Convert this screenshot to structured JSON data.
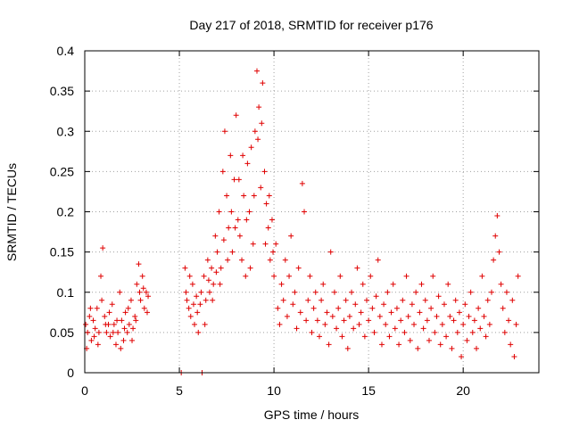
{
  "chart_data": {
    "type": "scatter",
    "title": "Day 217 of 2018, SRMTID for receiver p176",
    "xlabel": "GPS time / hours",
    "ylabel": "SRMTID / TECUs",
    "xlim": [
      0,
      24
    ],
    "ylim": [
      0,
      0.4
    ],
    "x_ticks": [
      0,
      5,
      10,
      15,
      20
    ],
    "x_tick_labels": [
      "0",
      "5",
      "10",
      "15",
      "20"
    ],
    "y_ticks": [
      0,
      0.05,
      0.1,
      0.15,
      0.2,
      0.25,
      0.3,
      0.35,
      0.4
    ],
    "y_tick_labels": [
      "0",
      "0.05",
      "0.1",
      "0.15",
      "0.2",
      "0.25",
      "0.3",
      "0.35",
      "0.4"
    ],
    "grid": true,
    "marker": "plus",
    "marker_color": "#e00000",
    "series": [
      {
        "name": "SRMTID",
        "points": [
          [
            0.05,
            0.06
          ],
          [
            0.15,
            0.05
          ],
          [
            0.25,
            0.07
          ],
          [
            0.35,
            0.04
          ],
          [
            0.45,
            0.065
          ],
          [
            0.55,
            0.055
          ],
          [
            0.65,
            0.08
          ],
          [
            0.75,
            0.05
          ],
          [
            0.85,
            0.12
          ],
          [
            0.95,
            0.155
          ],
          [
            1.05,
            0.07
          ],
          [
            1.15,
            0.05
          ],
          [
            1.25,
            0.06
          ],
          [
            1.35,
            0.045
          ],
          [
            1.45,
            0.085
          ],
          [
            1.55,
            0.06
          ],
          [
            1.65,
            0.035
          ],
          [
            1.75,
            0.05
          ],
          [
            1.85,
            0.1
          ],
          [
            1.95,
            0.065
          ],
          [
            2.05,
            0.04
          ],
          [
            2.15,
            0.075
          ],
          [
            2.25,
            0.05
          ],
          [
            2.35,
            0.06
          ],
          [
            2.45,
            0.09
          ],
          [
            2.55,
            0.055
          ],
          [
            2.65,
            0.07
          ],
          [
            2.75,
            0.11
          ],
          [
            2.85,
            0.135
          ],
          [
            2.95,
            0.09
          ],
          [
            3.05,
            0.12
          ],
          [
            3.15,
            0.08
          ],
          [
            3.25,
            0.1
          ],
          [
            3.35,
            0.095
          ],
          [
            0.1,
            0.03
          ],
          [
            0.3,
            0.08
          ],
          [
            0.5,
            0.045
          ],
          [
            0.7,
            0.035
          ],
          [
            0.9,
            0.09
          ],
          [
            1.1,
            0.06
          ],
          [
            1.3,
            0.075
          ],
          [
            1.5,
            0.05
          ],
          [
            1.7,
            0.065
          ],
          [
            1.9,
            0.03
          ],
          [
            2.1,
            0.055
          ],
          [
            2.3,
            0.08
          ],
          [
            2.5,
            0.04
          ],
          [
            2.7,
            0.065
          ],
          [
            2.9,
            0.1
          ],
          [
            3.1,
            0.105
          ],
          [
            3.3,
            0.075
          ],
          [
            5.1,
            0.0
          ],
          [
            5.3,
            0.13
          ],
          [
            5.4,
            0.09
          ],
          [
            5.5,
            0.08
          ],
          [
            5.6,
            0.07
          ],
          [
            5.7,
            0.11
          ],
          [
            5.8,
            0.06
          ],
          [
            5.9,
            0.095
          ],
          [
            6.0,
            0.05
          ],
          [
            6.1,
            0.085
          ],
          [
            6.2,
            0.0
          ],
          [
            6.3,
            0.12
          ],
          [
            6.4,
            0.09
          ],
          [
            6.5,
            0.14
          ],
          [
            6.6,
            0.1
          ],
          [
            6.7,
            0.13
          ],
          [
            6.8,
            0.11
          ],
          [
            6.9,
            0.17
          ],
          [
            7.0,
            0.15
          ],
          [
            7.1,
            0.2
          ],
          [
            7.2,
            0.13
          ],
          [
            7.3,
            0.25
          ],
          [
            7.4,
            0.3
          ],
          [
            7.5,
            0.22
          ],
          [
            7.6,
            0.18
          ],
          [
            7.7,
            0.27
          ],
          [
            7.8,
            0.15
          ],
          [
            7.9,
            0.24
          ],
          [
            8.0,
            0.32
          ],
          [
            8.1,
            0.19
          ],
          [
            8.2,
            0.17
          ],
          [
            8.3,
            0.14
          ],
          [
            8.4,
            0.22
          ],
          [
            8.5,
            0.12
          ],
          [
            8.6,
            0.26
          ],
          [
            8.7,
            0.2
          ],
          [
            8.8,
            0.28
          ],
          [
            8.9,
            0.16
          ],
          [
            9.0,
            0.3
          ],
          [
            9.1,
            0.375
          ],
          [
            9.2,
            0.33
          ],
          [
            9.3,
            0.23
          ],
          [
            9.4,
            0.36
          ],
          [
            9.5,
            0.25
          ],
          [
            9.6,
            0.21
          ],
          [
            9.7,
            0.18
          ],
          [
            9.8,
            0.14
          ],
          [
            9.9,
            0.19
          ],
          [
            10.0,
            0.12
          ],
          [
            5.35,
            0.1
          ],
          [
            5.55,
            0.12
          ],
          [
            5.75,
            0.085
          ],
          [
            5.95,
            0.075
          ],
          [
            6.15,
            0.1
          ],
          [
            6.35,
            0.06
          ],
          [
            6.55,
            0.115
          ],
          [
            6.75,
            0.09
          ],
          [
            6.95,
            0.125
          ],
          [
            7.15,
            0.11
          ],
          [
            7.35,
            0.165
          ],
          [
            7.55,
            0.14
          ],
          [
            7.75,
            0.2
          ],
          [
            7.95,
            0.18
          ],
          [
            8.15,
            0.24
          ],
          [
            8.35,
            0.27
          ],
          [
            8.55,
            0.19
          ],
          [
            8.75,
            0.13
          ],
          [
            8.95,
            0.22
          ],
          [
            9.15,
            0.29
          ],
          [
            9.35,
            0.31
          ],
          [
            9.55,
            0.16
          ],
          [
            9.75,
            0.22
          ],
          [
            9.95,
            0.15
          ],
          [
            10.1,
            0.16
          ],
          [
            10.2,
            0.08
          ],
          [
            10.3,
            0.06
          ],
          [
            10.4,
            0.11
          ],
          [
            10.5,
            0.09
          ],
          [
            10.6,
            0.14
          ],
          [
            10.7,
            0.07
          ],
          [
            10.8,
            0.12
          ],
          [
            10.9,
            0.17
          ],
          [
            11.0,
            0.085
          ],
          [
            11.1,
            0.1
          ],
          [
            11.2,
            0.055
          ],
          [
            11.3,
            0.13
          ],
          [
            11.4,
            0.075
          ],
          [
            11.5,
            0.235
          ],
          [
            11.6,
            0.2
          ],
          [
            11.7,
            0.065
          ],
          [
            11.8,
            0.09
          ],
          [
            11.9,
            0.12
          ],
          [
            12.0,
            0.05
          ],
          [
            12.1,
            0.08
          ],
          [
            12.2,
            0.1
          ],
          [
            12.3,
            0.065
          ],
          [
            12.4,
            0.045
          ],
          [
            12.5,
            0.09
          ],
          [
            12.6,
            0.11
          ],
          [
            12.7,
            0.06
          ],
          [
            12.8,
            0.075
          ],
          [
            12.9,
            0.035
          ],
          [
            13.0,
            0.15
          ],
          [
            13.1,
            0.07
          ],
          [
            13.2,
            0.1
          ],
          [
            13.3,
            0.055
          ],
          [
            13.4,
            0.08
          ],
          [
            13.5,
            0.12
          ],
          [
            13.6,
            0.045
          ],
          [
            13.7,
            0.065
          ],
          [
            13.8,
            0.09
          ],
          [
            13.9,
            0.03
          ],
          [
            14.0,
            0.07
          ],
          [
            14.1,
            0.1
          ],
          [
            14.2,
            0.055
          ],
          [
            14.3,
            0.085
          ],
          [
            14.4,
            0.13
          ],
          [
            14.5,
            0.06
          ],
          [
            14.6,
            0.075
          ],
          [
            14.7,
            0.11
          ],
          [
            14.8,
            0.045
          ],
          [
            14.9,
            0.09
          ],
          [
            15.0,
            0.065
          ],
          [
            15.1,
            0.12
          ],
          [
            15.2,
            0.08
          ],
          [
            15.3,
            0.05
          ],
          [
            15.4,
            0.095
          ],
          [
            15.5,
            0.14
          ],
          [
            15.6,
            0.07
          ],
          [
            15.7,
            0.035
          ],
          [
            15.8,
            0.085
          ],
          [
            15.9,
            0.06
          ],
          [
            16.0,
            0.1
          ],
          [
            16.1,
            0.045
          ],
          [
            16.2,
            0.075
          ],
          [
            16.3,
            0.11
          ],
          [
            16.4,
            0.055
          ],
          [
            16.5,
            0.08
          ],
          [
            16.6,
            0.035
          ],
          [
            16.7,
            0.065
          ],
          [
            16.8,
            0.09
          ],
          [
            16.9,
            0.05
          ],
          [
            17.0,
            0.12
          ],
          [
            17.1,
            0.07
          ],
          [
            17.2,
            0.04
          ],
          [
            17.3,
            0.085
          ],
          [
            17.4,
            0.06
          ],
          [
            17.5,
            0.1
          ],
          [
            17.6,
            0.03
          ],
          [
            17.7,
            0.075
          ],
          [
            17.8,
            0.11
          ],
          [
            17.9,
            0.055
          ],
          [
            18.0,
            0.09
          ],
          [
            18.1,
            0.065
          ],
          [
            18.2,
            0.04
          ],
          [
            18.3,
            0.08
          ],
          [
            18.4,
            0.12
          ],
          [
            18.5,
            0.05
          ],
          [
            18.6,
            0.07
          ],
          [
            18.7,
            0.095
          ],
          [
            18.8,
            0.035
          ],
          [
            18.9,
            0.06
          ],
          [
            19.0,
            0.085
          ],
          [
            19.1,
            0.045
          ],
          [
            19.2,
            0.11
          ],
          [
            19.3,
            0.07
          ],
          [
            19.4,
            0.03
          ],
          [
            19.5,
            0.065
          ],
          [
            19.6,
            0.09
          ],
          [
            19.7,
            0.05
          ],
          [
            19.8,
            0.075
          ],
          [
            19.9,
            0.02
          ],
          [
            20.0,
            0.06
          ],
          [
            20.1,
            0.085
          ],
          [
            20.2,
            0.04
          ],
          [
            20.3,
            0.07
          ],
          [
            20.4,
            0.1
          ],
          [
            20.5,
            0.05
          ],
          [
            20.6,
            0.065
          ],
          [
            20.7,
            0.03
          ],
          [
            20.8,
            0.08
          ],
          [
            20.9,
            0.055
          ],
          [
            21.0,
            0.12
          ],
          [
            21.1,
            0.07
          ],
          [
            21.2,
            0.045
          ],
          [
            21.3,
            0.09
          ],
          [
            21.4,
            0.06
          ],
          [
            21.5,
            0.1
          ],
          [
            21.6,
            0.14
          ],
          [
            21.7,
            0.17
          ],
          [
            21.8,
            0.195
          ],
          [
            21.9,
            0.15
          ],
          [
            22.0,
            0.11
          ],
          [
            22.1,
            0.08
          ],
          [
            22.2,
            0.05
          ],
          [
            22.3,
            0.1
          ],
          [
            22.4,
            0.065
          ],
          [
            22.5,
            0.035
          ],
          [
            22.6,
            0.09
          ],
          [
            22.7,
            0.02
          ],
          [
            22.8,
            0.06
          ],
          [
            22.9,
            0.12
          ]
        ]
      }
    ]
  }
}
